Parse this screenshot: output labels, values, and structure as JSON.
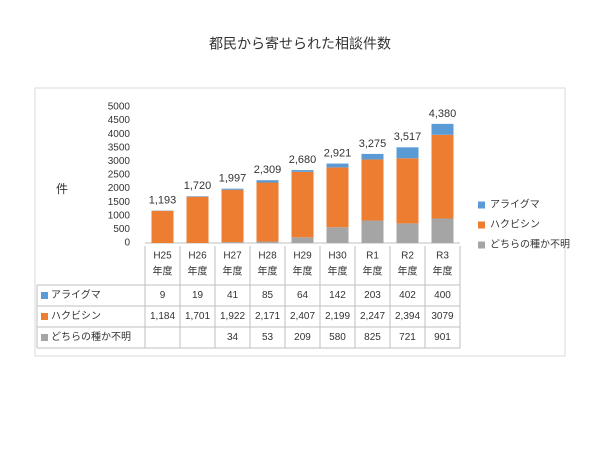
{
  "chart_data": {
    "type": "stacked_bar",
    "title": "都民から寄せられた相談件数",
    "y_label": "件",
    "categories": [
      [
        "H25",
        "年度"
      ],
      [
        "H26",
        "年度"
      ],
      [
        "H27",
        "年度"
      ],
      [
        "H28",
        "年度"
      ],
      [
        "H29",
        "年度"
      ],
      [
        "H30",
        "年度"
      ],
      [
        "R1",
        "年度"
      ],
      [
        "R2",
        "年度"
      ],
      [
        "R3",
        "年度"
      ]
    ],
    "series": [
      {
        "name": "どちらの種か不明",
        "color": "#a5a5a5",
        "values": [
          null,
          null,
          34,
          53,
          209,
          580,
          825,
          721,
          901
        ]
      },
      {
        "name": "ハクビシン",
        "color": "#ed7d31",
        "values": [
          1184,
          1701,
          1922,
          2171,
          2407,
          2199,
          2247,
          2394,
          3079
        ],
        "value_labels": [
          "1,184",
          "1,701",
          "1,922",
          "2,171",
          "2,407",
          "2,199",
          "2,247",
          "2,394",
          "3079"
        ]
      },
      {
        "name": "アライグマ",
        "color": "#5b9bd5",
        "values": [
          9,
          19,
          41,
          85,
          64,
          142,
          203,
          402,
          400
        ]
      }
    ],
    "totals": [
      1193,
      1720,
      1997,
      2309,
      2680,
      2921,
      3275,
      3517,
      4380
    ],
    "total_labels": [
      "1,193",
      "1,720",
      "1,997",
      "2,309",
      "2,680",
      "2,921",
      "3,275",
      "3,517",
      "4,380"
    ],
    "ylim": [
      0,
      5000
    ],
    "yticks": [
      0,
      500,
      1000,
      1500,
      2000,
      2500,
      3000,
      3500,
      4000,
      4500,
      5000
    ],
    "grid": false
  }
}
